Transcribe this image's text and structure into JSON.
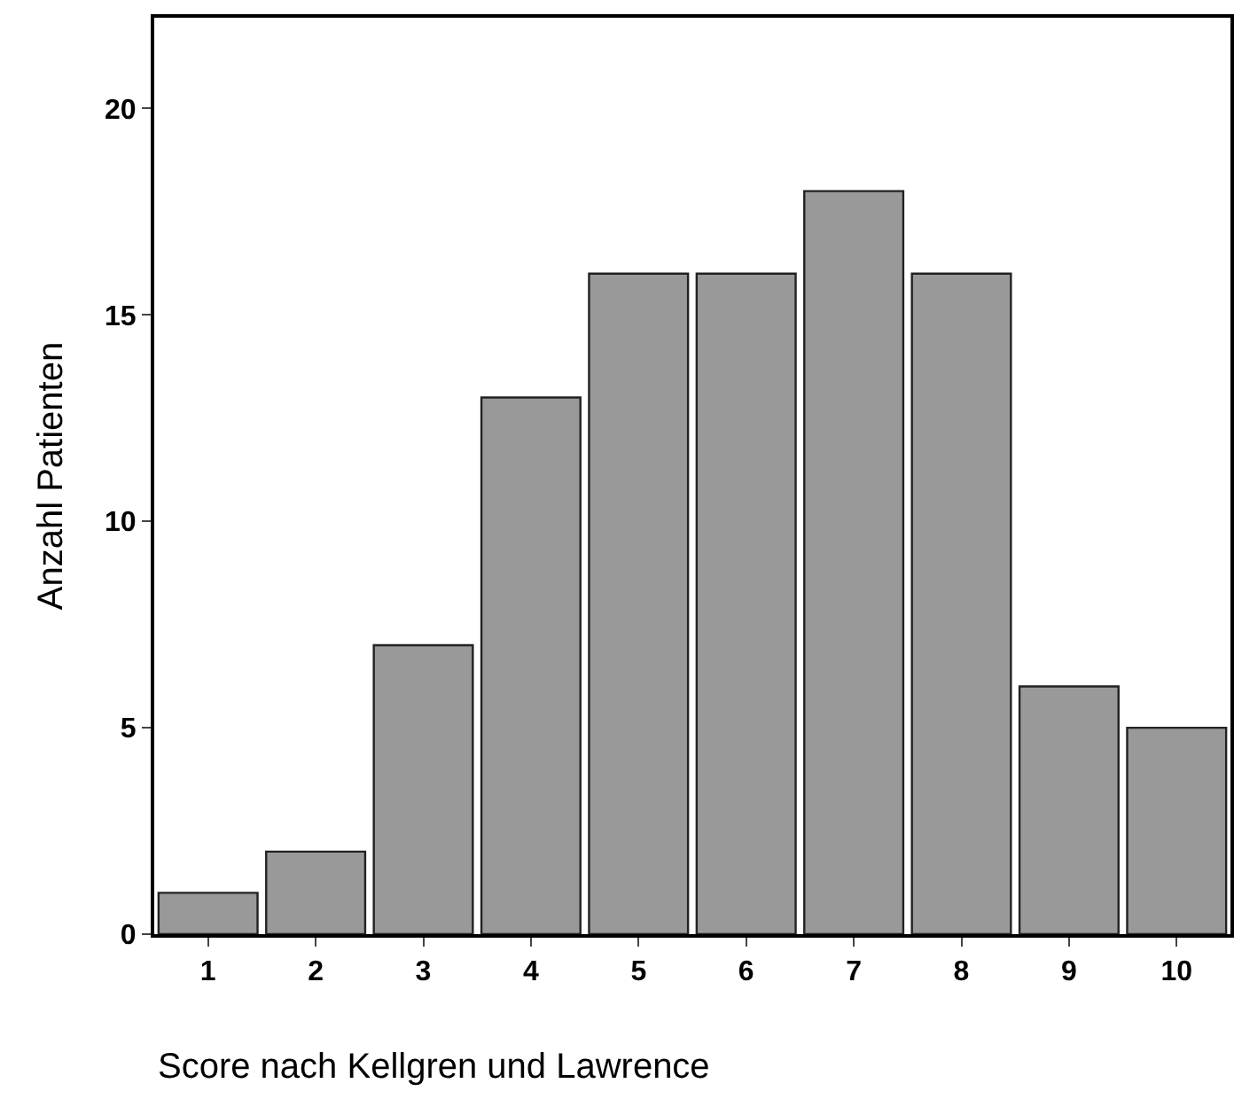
{
  "chart_data": {
    "type": "bar",
    "xlabel": "Score nach Kellgren und Lawrence",
    "ylabel": "Anzahl Patienten",
    "categories": [
      "1",
      "2",
      "3",
      "4",
      "5",
      "6",
      "7",
      "8",
      "9",
      "10"
    ],
    "values": [
      1,
      2,
      7,
      13,
      16,
      16,
      18,
      16,
      6,
      5
    ],
    "color": "#999999",
    "ylim": [
      0,
      22.2
    ],
    "yticks": [
      0,
      5,
      10,
      15,
      20
    ],
    "legend": false
  }
}
